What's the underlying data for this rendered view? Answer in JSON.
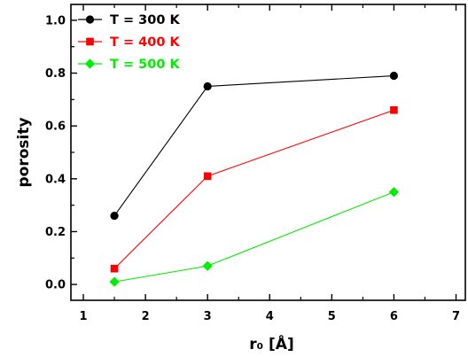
{
  "chart_data": {
    "type": "line",
    "xlabel": "r₀ [Å]",
    "ylabel": "porosity",
    "xlim": [
      0.8,
      7.15
    ],
    "ylim": [
      -0.06,
      1.06
    ],
    "xticks": [
      1,
      2,
      3,
      4,
      5,
      6,
      7
    ],
    "yticks": [
      0.0,
      0.2,
      0.4,
      0.6,
      0.8,
      1.0
    ],
    "xtick_labels": [
      "1",
      "2",
      "3",
      "4",
      "5",
      "6",
      "7"
    ],
    "ytick_labels": [
      "0.0",
      "0.2",
      "0.4",
      "0.6",
      "0.8",
      "1.0"
    ],
    "legend_position": "top-left",
    "grid": false,
    "series": [
      {
        "name": "T = 300 K",
        "color": "#000000",
        "marker": "circle",
        "x": [
          1.5,
          3,
          6
        ],
        "y": [
          0.26,
          0.75,
          0.79
        ]
      },
      {
        "name": "T = 400 K",
        "color": "#ff0000",
        "marker": "square",
        "x": [
          1.5,
          3,
          6
        ],
        "y": [
          0.06,
          0.41,
          0.66
        ]
      },
      {
        "name": "T = 500 K",
        "color": "#00ee00",
        "marker": "diamond",
        "x": [
          1.5,
          3,
          6
        ],
        "y": [
          0.01,
          0.07,
          0.35
        ]
      }
    ]
  }
}
